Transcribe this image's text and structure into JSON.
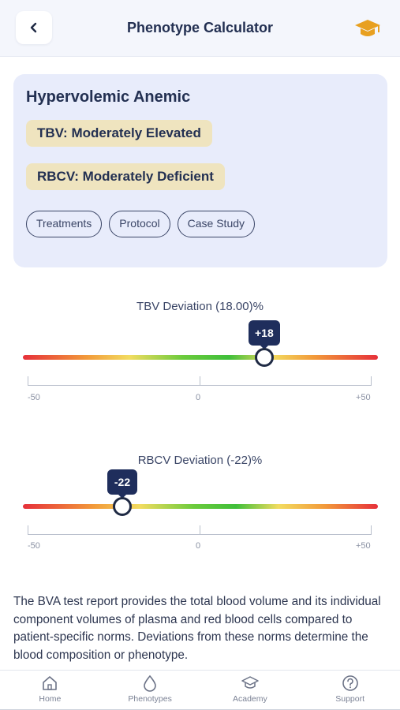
{
  "header": {
    "title": "Phenotype Calculator",
    "back_icon": "chevron-left-icon",
    "academy_icon": "graduation-cap-icon",
    "accent_color": "#e8a020"
  },
  "phenotype_card": {
    "title": "Hypervolemic Anemic",
    "tbv_status": "TBV: Moderately Elevated",
    "rbcv_status": "RBCV: Moderately Deficient",
    "status_pill_color": "#efe4bf",
    "chips": [
      "Treatments",
      "Protocol",
      "Case Study"
    ]
  },
  "tbv_slider": {
    "label": "TBV Deviation (18.00)%",
    "value": 18,
    "value_label": "+18",
    "min": -50,
    "max": 50,
    "min_label": "-50",
    "mid_label": "0",
    "max_label": "+50"
  },
  "rbcv_slider": {
    "label": "RBCV Deviation (-22)%",
    "value": -22,
    "value_label": "-22",
    "min": -50,
    "max": 50,
    "min_label": "-50",
    "mid_label": "0",
    "max_label": "+50"
  },
  "description": "The BVA test report provides the total blood volume and its individual component volumes of plasma and red blood cells compared to patient-specific norms. Deviations from these norms determine the blood composition or phenotype.",
  "bottom_nav": [
    {
      "label": "Home",
      "icon": "home-icon"
    },
    {
      "label": "Phenotypes",
      "icon": "droplet-icon"
    },
    {
      "label": "Academy",
      "icon": "graduation-cap-icon"
    },
    {
      "label": "Support",
      "icon": "help-circle-icon"
    }
  ]
}
